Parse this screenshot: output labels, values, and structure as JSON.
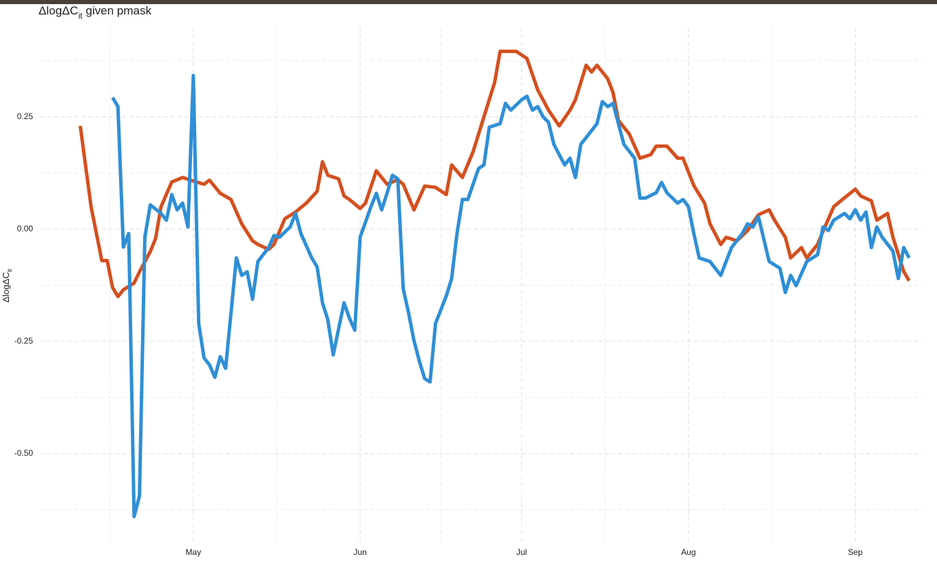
{
  "chart_data": {
    "type": "line",
    "title": [
      "ΔlogΔC",
      "it",
      " given pmask"
    ],
    "y_label": [
      "ΔlogΔC",
      "it"
    ],
    "xlim": [
      -7.5,
      156.5
    ],
    "xticks": [
      {
        "value": 21,
        "label": "May"
      },
      {
        "value": 52,
        "label": "Jun"
      },
      {
        "value": 82,
        "label": "Jul"
      },
      {
        "value": 113,
        "label": "Aug"
      },
      {
        "value": 144,
        "label": "Sep"
      }
    ],
    "ylim": [
      -0.701,
      0.449
    ],
    "yticks": [
      {
        "value": -0.5,
        "label": "-0.50"
      },
      -0.25,
      {
        "value": 0,
        "label": "0.00"
      },
      0.25
    ],
    "grid": true,
    "series": [
      {
        "color": "#d4501f",
        "x": [
          0,
          1,
          2,
          4,
          5,
          6,
          7,
          8,
          10,
          11,
          13,
          14,
          15,
          17,
          19,
          21,
          23,
          24,
          26,
          28,
          30,
          32,
          33,
          35,
          36,
          38,
          40,
          42,
          44,
          45,
          46,
          48,
          49,
          50,
          52,
          53,
          55,
          57,
          59,
          60,
          62,
          64,
          66,
          68,
          69,
          71,
          73,
          75,
          77,
          78,
          81,
          83,
          85,
          87,
          89,
          91,
          92,
          94,
          95,
          96,
          98,
          99,
          100,
          102,
          104,
          106,
          107,
          109,
          111,
          112,
          114,
          116,
          117,
          119,
          120,
          122,
          124,
          126,
          128,
          129,
          131,
          132,
          134,
          135,
          137,
          138,
          140,
          142,
          144,
          145,
          147,
          148,
          150,
          151,
          153,
          154
        ],
        "values": [
          0.23,
          0.14,
          0.05,
          -0.07,
          -0.07,
          -0.13,
          -0.15,
          -0.135,
          -0.12,
          -0.095,
          -0.05,
          -0.02,
          0.05,
          0.105,
          0.115,
          0.107,
          0.1,
          0.109,
          0.08,
          0.066,
          0.012,
          -0.026,
          -0.034,
          -0.045,
          -0.034,
          0.023,
          0.038,
          0.058,
          0.084,
          0.15,
          0.12,
          0.112,
          0.074,
          0.066,
          0.046,
          0.058,
          0.13,
          0.1,
          0.11,
          0.1,
          0.043,
          0.096,
          0.093,
          0.077,
          0.143,
          0.115,
          0.173,
          0.25,
          0.327,
          0.396,
          0.396,
          0.38,
          0.31,
          0.265,
          0.23,
          0.265,
          0.288,
          0.365,
          0.35,
          0.365,
          0.335,
          0.304,
          0.242,
          0.212,
          0.158,
          0.166,
          0.185,
          0.185,
          0.158,
          0.158,
          0.097,
          0.058,
          0.012,
          -0.034,
          -0.018,
          -0.026,
          -0.003,
          0.032,
          0.043,
          0.02,
          -0.018,
          -0.064,
          -0.041,
          -0.064,
          -0.034,
          -0.005,
          0.05,
          0.07,
          0.089,
          0.074,
          0.063,
          0.02,
          0.035,
          -0.018,
          -0.094,
          -0.115
        ]
      },
      {
        "color": "#2f8fd6",
        "x": [
          6,
          7,
          8,
          9,
          10,
          11,
          12,
          13,
          15,
          16,
          17,
          18,
          19,
          20,
          21,
          22,
          23,
          24,
          25,
          26,
          27,
          29,
          30,
          31,
          32,
          33,
          35,
          36,
          37,
          39,
          40,
          41,
          43,
          44,
          45,
          46,
          47,
          49,
          50,
          51,
          52,
          54,
          55,
          56,
          57,
          58,
          59,
          60,
          61,
          62,
          63,
          64,
          65,
          66,
          68,
          69,
          70,
          71,
          72,
          74,
          75,
          76,
          78,
          79,
          80,
          82,
          83,
          84,
          85,
          86,
          87,
          88,
          89,
          90,
          91,
          92,
          93,
          94,
          96,
          97,
          98,
          99,
          100,
          101,
          103,
          104,
          105,
          107,
          108,
          109,
          111,
          112,
          113,
          114,
          115,
          117,
          119,
          121,
          123,
          124,
          125,
          126,
          128,
          130,
          131,
          132,
          133,
          135,
          137,
          138,
          139,
          140,
          142,
          143,
          144,
          145,
          146,
          147,
          148,
          149,
          151,
          152,
          153,
          154
        ],
        "values": [
          0.293,
          0.273,
          -0.04,
          -0.01,
          -0.64,
          -0.594,
          -0.018,
          0.054,
          0.035,
          0.02,
          0.077,
          0.043,
          0.058,
          0.005,
          0.342,
          -0.21,
          -0.287,
          -0.302,
          -0.33,
          -0.284,
          -0.31,
          -0.064,
          -0.103,
          -0.095,
          -0.156,
          -0.072,
          -0.041,
          -0.014,
          -0.018,
          0.005,
          0.035,
          -0.01,
          -0.064,
          -0.084,
          -0.164,
          -0.202,
          -0.28,
          -0.164,
          -0.198,
          -0.225,
          -0.018,
          0.05,
          0.08,
          0.043,
          0.08,
          0.12,
          0.112,
          -0.133,
          -0.187,
          -0.248,
          -0.294,
          -0.333,
          -0.34,
          -0.21,
          -0.149,
          -0.11,
          -0.01,
          0.066,
          0.066,
          0.135,
          0.143,
          0.227,
          0.235,
          0.28,
          0.265,
          0.288,
          0.296,
          0.265,
          0.273,
          0.25,
          0.238,
          0.189,
          0.166,
          0.143,
          0.158,
          0.115,
          0.189,
          0.204,
          0.235,
          0.284,
          0.273,
          0.28,
          0.235,
          0.189,
          0.158,
          0.069,
          0.069,
          0.081,
          0.104,
          0.081,
          0.058,
          0.066,
          0.05,
          -0.01,
          -0.064,
          -0.072,
          -0.103,
          -0.041,
          -0.01,
          0.012,
          0.005,
          0.028,
          -0.072,
          -0.087,
          -0.141,
          -0.103,
          -0.126,
          -0.072,
          -0.057,
          0.005,
          -0.003,
          0.02,
          0.035,
          0.023,
          0.043,
          0.02,
          0.038,
          -0.041,
          0.005,
          -0.018,
          -0.049,
          -0.11,
          -0.041,
          -0.064
        ]
      }
    ]
  }
}
